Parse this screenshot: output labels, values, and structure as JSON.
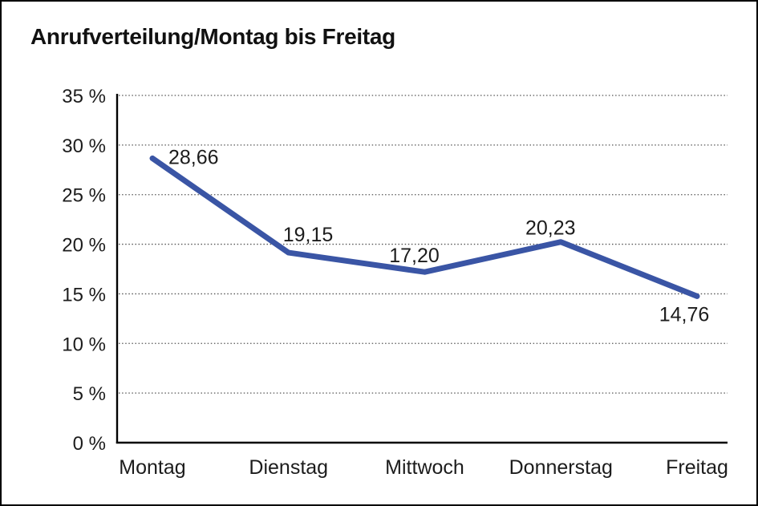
{
  "window": {
    "background_color": "#FFFFFF",
    "border_color": "#000000"
  },
  "chart_data": {
    "type": "line",
    "title": "Anrufverteilung/Montag bis Freitag",
    "categories": [
      "Montag",
      "Dienstag",
      "Mittwoch",
      "Donnerstag",
      "Freitag"
    ],
    "series": [
      {
        "name": "Anrufverteilung",
        "values": [
          28.66,
          19.15,
          17.2,
          20.23,
          14.76
        ]
      }
    ],
    "value_labels": [
      "28,66",
      "19,15",
      "17,20",
      "20,23",
      "14,76"
    ],
    "xlabel": "",
    "ylabel": "",
    "ylim": [
      0,
      35
    ],
    "ytick_step": 5,
    "ytick_labels": [
      "0 %",
      "5 %",
      "10 %",
      "15 %",
      "20 %",
      "25 %",
      "30 %",
      "35 %"
    ],
    "grid": "horizontal-dotted",
    "legend": "none",
    "decimal_separator": ",",
    "line_color": "#3A55A5",
    "axis_color": "#000000",
    "grid_color": "#555555",
    "text_color": "#1C1C1C"
  }
}
